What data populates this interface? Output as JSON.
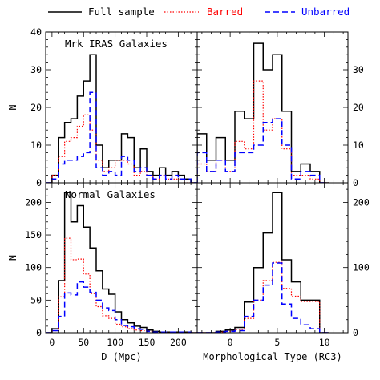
{
  "chart_data": {
    "type": "histogram-grid",
    "legend": {
      "placement": "top",
      "entries": [
        {
          "label": "Full sample",
          "color": "#000000",
          "style": "solid"
        },
        {
          "label": "Barred",
          "color": "#ff0000",
          "style": "dotted"
        },
        {
          "label": "Unbarred",
          "color": "#0000ff",
          "style": "dashed"
        }
      ]
    },
    "panels": [
      {
        "id": "tl",
        "annotation": "Mrk IRAS Galaxies",
        "ylabel": "N",
        "xlabel": "",
        "xlim": [
          -10,
          230
        ],
        "ylim": [
          0,
          40
        ],
        "ytick_side": "left",
        "xticks": [],
        "yticks": [
          0,
          10,
          20,
          30,
          40
        ],
        "bins": [
          -10,
          0,
          10,
          20,
          30,
          40,
          50,
          60,
          70,
          80,
          90,
          100,
          110,
          120,
          130,
          140,
          150,
          160,
          170,
          180,
          190,
          200,
          210,
          220,
          230
        ],
        "series": [
          {
            "name": "Full sample",
            "values": [
              0,
              2,
              12,
              16,
              17,
              23,
              27,
              34,
              10,
              4,
              6,
              6,
              13,
              12,
              4,
              9,
              3,
              2,
              4,
              2,
              3,
              2,
              1,
              0
            ]
          },
          {
            "name": "Barred",
            "values": [
              0,
              2,
              7,
              11,
              12,
              15,
              18,
              14,
              6,
              3,
              4,
              6,
              6,
              5,
              2,
              3,
              2,
              1,
              2,
              1,
              1,
              1,
              0,
              0
            ]
          },
          {
            "name": "Unbarred",
            "values": [
              0,
              1,
              5,
              6,
              6,
              7,
              8,
              24,
              4,
              2,
              3,
              2,
              7,
              6,
              3,
              4,
              2,
              1,
              2,
              1,
              2,
              1,
              1,
              0
            ]
          }
        ]
      },
      {
        "id": "tr",
        "annotation": "",
        "ylabel": "",
        "xlabel": "",
        "xlim": [
          -3.5,
          12.5
        ],
        "ylim": [
          0,
          40
        ],
        "ytick_side": "right",
        "xticks": [],
        "yticks": [
          0,
          10,
          20,
          30
        ],
        "bins": [
          -3.5,
          -2.5,
          -1.5,
          -0.5,
          0.5,
          1.5,
          2.5,
          3.5,
          4.5,
          5.5,
          6.5,
          7.5,
          8.5,
          9.5,
          10.5
        ],
        "series": [
          {
            "name": "Full sample",
            "values": [
              13,
              6,
              12,
              6,
              19,
              17,
              37,
              30,
              34,
              19,
              3,
              5,
              3,
              0
            ]
          },
          {
            "name": "Barred",
            "values": [
              5,
              3,
              6,
              3,
              11,
              9,
              27,
              14,
              17,
              9,
              2,
              2,
              1,
              0
            ]
          },
          {
            "name": "Unbarred",
            "values": [
              8,
              3,
              6,
              3,
              8,
              8,
              10,
              16,
              17,
              10,
              1,
              3,
              2,
              0
            ]
          }
        ]
      },
      {
        "id": "bl",
        "annotation": "Normal Galaxies",
        "ylabel": "N",
        "xlabel": "D (Mpc)",
        "xlim": [
          -10,
          230
        ],
        "ylim": [
          0,
          230
        ],
        "ytick_side": "left",
        "xticks": [
          0,
          50,
          100,
          150,
          200
        ],
        "yticks": [
          0,
          50,
          100,
          150,
          200
        ],
        "bins": [
          -10,
          0,
          10,
          20,
          30,
          40,
          50,
          60,
          70,
          80,
          90,
          100,
          110,
          120,
          130,
          140,
          150,
          160,
          170,
          180,
          190,
          200,
          210,
          220,
          230
        ],
        "series": [
          {
            "name": "Full sample",
            "values": [
              0,
              6,
              80,
              215,
              170,
              195,
              162,
              130,
              95,
              67,
              59,
              32,
              20,
              15,
              10,
              8,
              4,
              2,
              1,
              1,
              1,
              1,
              1,
              0
            ]
          },
          {
            "name": "Barred",
            "values": [
              0,
              3,
              55,
              145,
              112,
              113,
              90,
              60,
              40,
              26,
              22,
              13,
              9,
              6,
              4,
              3,
              2,
              1,
              0,
              0,
              0,
              0,
              0,
              0
            ]
          },
          {
            "name": "Unbarred",
            "values": [
              0,
              3,
              25,
              61,
              58,
              78,
              70,
              62,
              50,
              38,
              34,
              20,
              11,
              9,
              6,
              5,
              2,
              1,
              1,
              1,
              1,
              1,
              1,
              0
            ]
          }
        ]
      },
      {
        "id": "br",
        "annotation": "",
        "ylabel": "",
        "xlabel": "Morphological Type (RC3)",
        "xlim": [
          -3.5,
          12.5
        ],
        "ylim": [
          0,
          230
        ],
        "ytick_side": "right",
        "xticks": [
          0,
          5,
          10
        ],
        "yticks": [
          0,
          100,
          200
        ],
        "bins": [
          -3.5,
          -2.5,
          -1.5,
          -0.5,
          0.5,
          1.5,
          2.5,
          3.5,
          4.5,
          5.5,
          6.5,
          7.5,
          8.5,
          9.5,
          10.5
        ],
        "series": [
          {
            "name": "Full sample",
            "values": [
              0,
              0,
              2,
              4,
              8,
              47,
              100,
              153,
              215,
              112,
              78,
              50,
              50,
              0
            ]
          },
          {
            "name": "Barred",
            "values": [
              0,
              0,
              1,
              2,
              5,
              22,
              50,
              80,
              108,
              68,
              56,
              48,
              48,
              0
            ]
          },
          {
            "name": "Unbarred",
            "values": [
              0,
              0,
              1,
              2,
              3,
              25,
              50,
              73,
              107,
              44,
              22,
              12,
              6,
              0
            ]
          }
        ]
      }
    ]
  }
}
